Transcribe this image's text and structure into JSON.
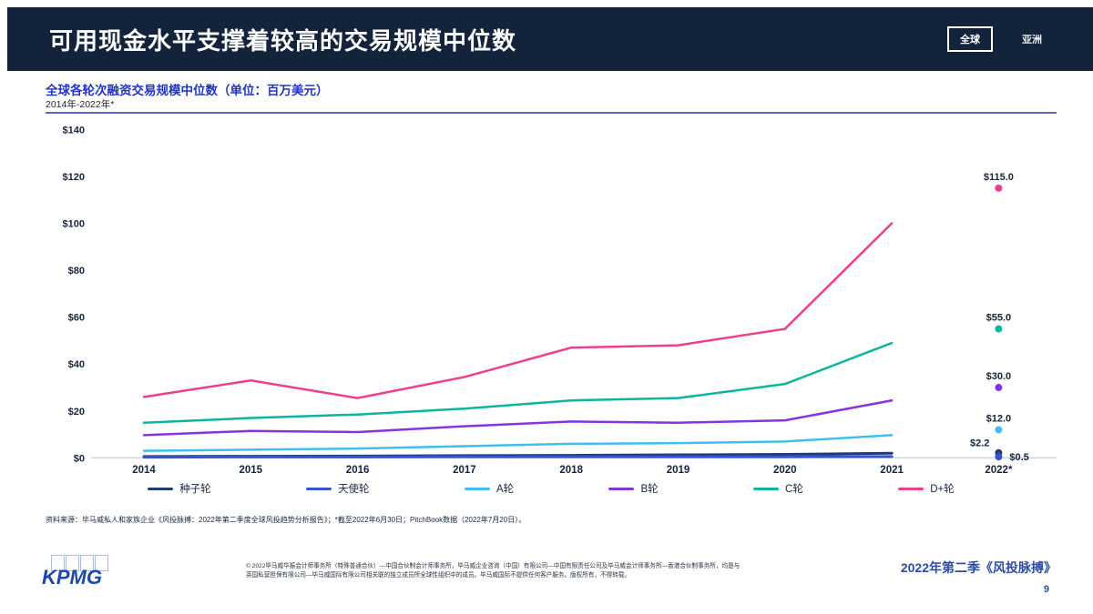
{
  "header": {
    "title": "可用现金水平支撑着较高的交易规模中位数",
    "toggles": [
      {
        "label": "全球",
        "selected": true
      },
      {
        "label": "亚洲",
        "selected": false
      }
    ]
  },
  "chart_header": {
    "title": "全球各轮次融资交易规模中位数（单位：百万美元）",
    "subtitle": "2014年-2022年*"
  },
  "chart_data": {
    "type": "line",
    "title": "全球各轮次融资交易规模中位数（单位：百万美元）",
    "subtitle": "2014年-2022年*",
    "categories": [
      "2014",
      "2015",
      "2016",
      "2017",
      "2018",
      "2019",
      "2020",
      "2021",
      "2022*"
    ],
    "ylabel": "百万美元",
    "ylim": [
      0,
      140
    ],
    "grid": false,
    "legend_position": "bottom",
    "yticks": [
      {
        "value": 0,
        "label": "$0"
      },
      {
        "value": 20,
        "label": "$20"
      },
      {
        "value": 40,
        "label": "$40"
      },
      {
        "value": 60,
        "label": "$60"
      },
      {
        "value": 80,
        "label": "$80"
      },
      {
        "value": 100,
        "label": "$100"
      },
      {
        "value": 120,
        "label": "$120"
      },
      {
        "value": 140,
        "label": "$140"
      }
    ],
    "series": [
      {
        "name": "种子轮",
        "color": "#1E3C78",
        "width": 3,
        "values": [
          0.6,
          0.7,
          0.8,
          1.0,
          1.1,
          1.3,
          1.5,
          2.0
        ],
        "value_2022": 2.2,
        "label_2022": "$2.2",
        "marker_label_pos": "left"
      },
      {
        "name": "天使轮",
        "color": "#3355D4",
        "width": 3,
        "values": [
          0.3,
          0.4,
          0.4,
          0.5,
          0.5,
          0.5,
          0.5,
          0.6
        ],
        "value_2022": 0.5,
        "label_2022": "$0.5",
        "marker_label_pos": "right"
      },
      {
        "name": "A轮",
        "color": "#41BEEF",
        "width": 2.5,
        "values": [
          3.0,
          3.5,
          4.0,
          5.0,
          6.0,
          6.3,
          7.0,
          9.7
        ],
        "value_2022": 12.0,
        "label_2022": "$12.0",
        "marker_label_pos": "above"
      },
      {
        "name": "B轮",
        "color": "#8633E0",
        "width": 2.5,
        "values": [
          9.7,
          11.5,
          11.0,
          13.5,
          15.5,
          15.0,
          16.0,
          24.5
        ],
        "value_2022": 30.0,
        "label_2022": "$30.0",
        "marker_label_pos": "above"
      },
      {
        "name": "C轮",
        "color": "#0CB59E",
        "width": 2.5,
        "values": [
          15.0,
          17.0,
          18.5,
          21.0,
          24.5,
          25.5,
          31.5,
          49.0
        ],
        "value_2022": 55.0,
        "label_2022": "$55.0",
        "marker_label_pos": "above"
      },
      {
        "name": "D+轮",
        "color": "#F03E8E",
        "width": 2.5,
        "values": [
          26.0,
          33.0,
          25.5,
          34.5,
          47.0,
          48.0,
          55.0,
          100.0
        ],
        "value_2022": 115.0,
        "label_2022": "$115.0",
        "marker_label_pos": "above"
      }
    ]
  },
  "source_note": "资料来源：毕马威私人和家族企业《风投脉搏：2022年第二季度全球风投趋势分析报告》；*截至2022年6月30日；PitchBook数据（2022年7月20日）。",
  "footer": {
    "disclaimer": "© 2022毕马威华振会计师事务所（特殊普通合伙）—中国合伙制会计师事务所，毕马威企业咨询（中国）有限公司—中国有限责任公司及毕马威会计师事务所—香港合伙制事务所，均是与英国私营担保有限公司—毕马威国际有限公司相关联的独立成员所全球性组织中的成员。毕马威国际不提供任何客户服务。版权所有，不得转载。",
    "publication": "2022年第二季《风投脉搏》",
    "page_number": "9",
    "logo": "KPMG"
  }
}
